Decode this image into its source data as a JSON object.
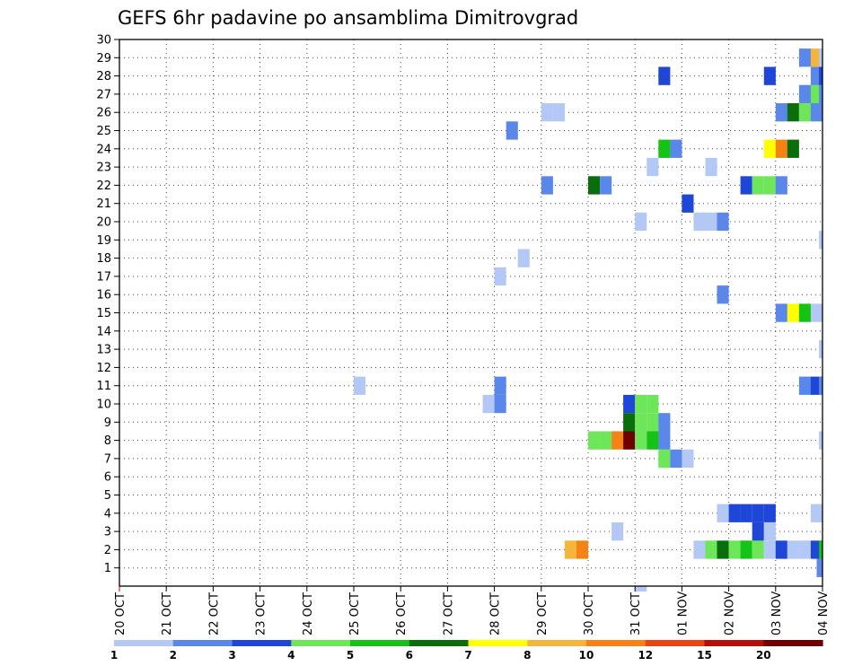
{
  "chart_data": {
    "type": "heatmap",
    "title": "GEFS 6hr padavine po ansamblima Dimitrovgrad",
    "xlabel": "",
    "ylabel": "",
    "x_unit": "6-hour step",
    "x_range": [
      0,
      60
    ],
    "y_range": [
      0,
      30
    ],
    "x_tick_labels": [
      "20 OCT",
      "21 OCT",
      "22 OCT",
      "23 OCT",
      "24 OCT",
      "25 OCT",
      "26 OCT",
      "27 OCT",
      "28 OCT",
      "29 OCT",
      "30 OCT",
      "31 OCT",
      "01 NOV",
      "02 NOV",
      "03 NOV",
      "04 NOV"
    ],
    "y_tick_labels": [
      "1",
      "2",
      "3",
      "4",
      "5",
      "6",
      "7",
      "8",
      "9",
      "10",
      "11",
      "12",
      "13",
      "14",
      "15",
      "16",
      "17",
      "18",
      "19",
      "20",
      "21",
      "22",
      "23",
      "24",
      "25",
      "26",
      "27",
      "28",
      "29",
      "30"
    ],
    "grid": true,
    "colorbar": {
      "labels": [
        "1",
        "2",
        "3",
        "4",
        "5",
        "6",
        "7",
        "8",
        "10",
        "12",
        "15",
        "20"
      ],
      "colors": [
        "#b4c8f5",
        "#5a87ea",
        "#1e46d7",
        "#6de65a",
        "#14c314",
        "#0a6e0a",
        "#ffff00",
        "#f5b43c",
        "#f58214",
        "#e64614",
        "#b40f0a",
        "#6e0000"
      ]
    },
    "cells": [
      {
        "x": 59.5,
        "y": 1,
        "v": 2
      },
      {
        "x": 38,
        "y": 2,
        "v": 8
      },
      {
        "x": 39,
        "y": 2,
        "v": 10
      },
      {
        "x": 49,
        "y": 2,
        "v": 1
      },
      {
        "x": 50,
        "y": 2,
        "v": 4
      },
      {
        "x": 51,
        "y": 2,
        "v": 6
      },
      {
        "x": 52,
        "y": 2,
        "v": 4
      },
      {
        "x": 53,
        "y": 2,
        "v": 5
      },
      {
        "x": 54,
        "y": 2,
        "v": 4
      },
      {
        "x": 55,
        "y": 2,
        "v": 1
      },
      {
        "x": 56,
        "y": 2,
        "v": 3
      },
      {
        "x": 57,
        "y": 2,
        "v": 1
      },
      {
        "x": 58,
        "y": 2,
        "v": 1
      },
      {
        "x": 59,
        "y": 2,
        "v": 3
      },
      {
        "x": 59.7,
        "y": 2,
        "v": 5
      },
      {
        "x": 42,
        "y": 3,
        "v": 1
      },
      {
        "x": 54,
        "y": 3,
        "v": 3
      },
      {
        "x": 55,
        "y": 3,
        "v": 1
      },
      {
        "x": 51,
        "y": 4,
        "v": 1
      },
      {
        "x": 52,
        "y": 4,
        "v": 3
      },
      {
        "x": 53,
        "y": 4,
        "v": 3
      },
      {
        "x": 54,
        "y": 4,
        "v": 3
      },
      {
        "x": 55,
        "y": 4,
        "v": 3
      },
      {
        "x": 59,
        "y": 4,
        "v": 1
      },
      {
        "x": 46,
        "y": 7,
        "v": 4
      },
      {
        "x": 47,
        "y": 7,
        "v": 2
      },
      {
        "x": 48,
        "y": 7,
        "v": 1
      },
      {
        "x": 40,
        "y": 8,
        "v": 4
      },
      {
        "x": 41,
        "y": 8,
        "v": 4
      },
      {
        "x": 42,
        "y": 8,
        "v": 10
      },
      {
        "x": 43,
        "y": 8,
        "v": 20
      },
      {
        "x": 44,
        "y": 8,
        "v": 4
      },
      {
        "x": 45,
        "y": 8,
        "v": 5
      },
      {
        "x": 46,
        "y": 8,
        "v": 2
      },
      {
        "x": 59.7,
        "y": 8,
        "v": 1
      },
      {
        "x": 43,
        "y": 9,
        "v": 6
      },
      {
        "x": 44,
        "y": 9,
        "v": 4
      },
      {
        "x": 45,
        "y": 9,
        "v": 4
      },
      {
        "x": 46,
        "y": 9,
        "v": 2
      },
      {
        "x": 31,
        "y": 10,
        "v": 1
      },
      {
        "x": 32,
        "y": 10,
        "v": 2
      },
      {
        "x": 43,
        "y": 10,
        "v": 3
      },
      {
        "x": 44,
        "y": 10,
        "v": 4
      },
      {
        "x": 45,
        "y": 10,
        "v": 4
      },
      {
        "x": 20,
        "y": 11,
        "v": 1
      },
      {
        "x": 32,
        "y": 11,
        "v": 2
      },
      {
        "x": 58,
        "y": 11,
        "v": 2
      },
      {
        "x": 59,
        "y": 11,
        "v": 3
      },
      {
        "x": 59.7,
        "y": 11,
        "v": 2
      },
      {
        "x": 59.7,
        "y": 13,
        "v": 1
      },
      {
        "x": 56,
        "y": 15,
        "v": 2
      },
      {
        "x": 57,
        "y": 15,
        "v": 7
      },
      {
        "x": 58,
        "y": 15,
        "v": 5
      },
      {
        "x": 59,
        "y": 15,
        "v": 1
      },
      {
        "x": 51,
        "y": 16,
        "v": 2
      },
      {
        "x": 32,
        "y": 17,
        "v": 1
      },
      {
        "x": 34,
        "y": 18,
        "v": 1
      },
      {
        "x": 59.7,
        "y": 19,
        "v": 1
      },
      {
        "x": 44,
        "y": 20,
        "v": 1
      },
      {
        "x": 49,
        "y": 20,
        "v": 1
      },
      {
        "x": 50,
        "y": 20,
        "v": 1
      },
      {
        "x": 51,
        "y": 20,
        "v": 2
      },
      {
        "x": 48,
        "y": 21,
        "v": 3
      },
      {
        "x": 36,
        "y": 22,
        "v": 2
      },
      {
        "x": 40,
        "y": 22,
        "v": 6
      },
      {
        "x": 41,
        "y": 22,
        "v": 2
      },
      {
        "x": 53,
        "y": 22,
        "v": 3
      },
      {
        "x": 54,
        "y": 22,
        "v": 4
      },
      {
        "x": 55,
        "y": 22,
        "v": 4
      },
      {
        "x": 56,
        "y": 22,
        "v": 2
      },
      {
        "x": 45,
        "y": 23,
        "v": 1
      },
      {
        "x": 50,
        "y": 23,
        "v": 1
      },
      {
        "x": 46,
        "y": 24,
        "v": 5
      },
      {
        "x": 47,
        "y": 24,
        "v": 2
      },
      {
        "x": 55,
        "y": 24,
        "v": 7
      },
      {
        "x": 56,
        "y": 24,
        "v": 10
      },
      {
        "x": 57,
        "y": 24,
        "v": 6
      },
      {
        "x": 33,
        "y": 25,
        "v": 2
      },
      {
        "x": 36,
        "y": 26,
        "v": 1
      },
      {
        "x": 37,
        "y": 26,
        "v": 1
      },
      {
        "x": 56,
        "y": 26,
        "v": 2
      },
      {
        "x": 57,
        "y": 26,
        "v": 6
      },
      {
        "x": 58,
        "y": 26,
        "v": 4
      },
      {
        "x": 59,
        "y": 26,
        "v": 2
      },
      {
        "x": 58,
        "y": 27,
        "v": 2
      },
      {
        "x": 59,
        "y": 27,
        "v": 4
      },
      {
        "x": 59.7,
        "y": 27,
        "v": 2
      },
      {
        "x": 46,
        "y": 28,
        "v": 3
      },
      {
        "x": 55,
        "y": 28,
        "v": 3
      },
      {
        "x": 59,
        "y": 28,
        "v": 2
      },
      {
        "x": 59.7,
        "y": 28,
        "v": 3
      },
      {
        "x": 58,
        "y": 29,
        "v": 2
      },
      {
        "x": 59,
        "y": 29,
        "v": 8
      },
      {
        "x": 59.7,
        "y": 29,
        "v": 1
      },
      {
        "x": 44,
        "y": 0,
        "v": 1
      }
    ]
  }
}
